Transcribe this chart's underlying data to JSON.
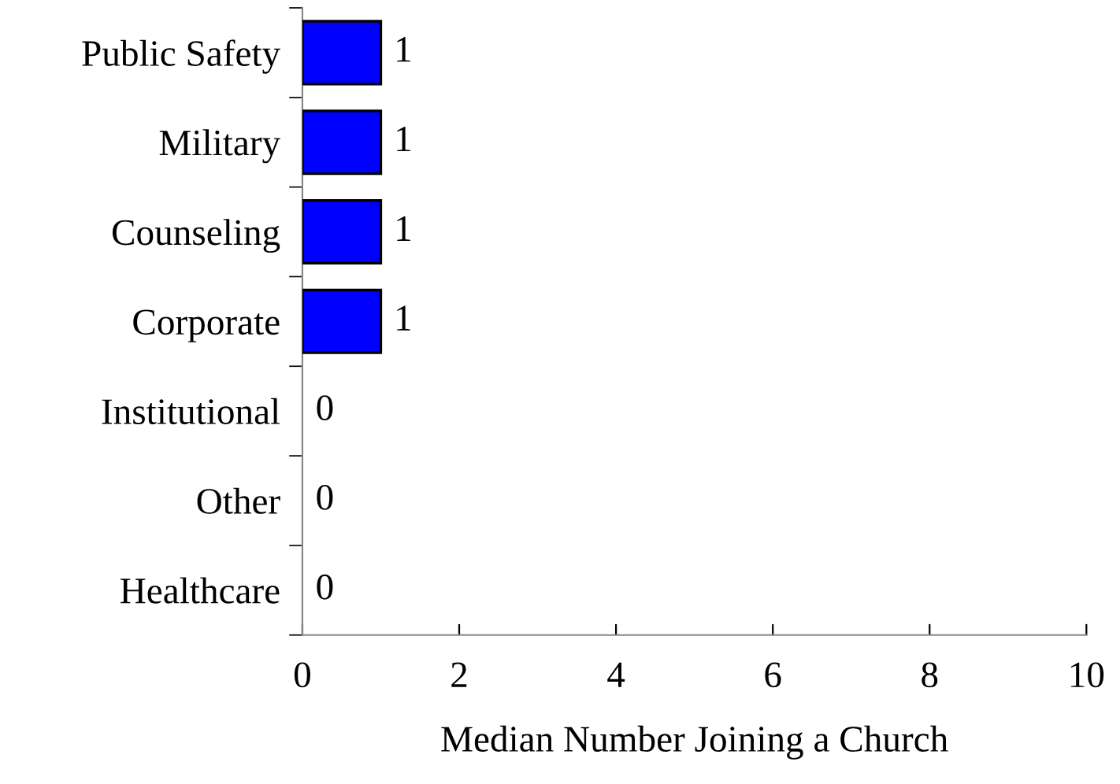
{
  "chart_data": {
    "type": "bar",
    "orientation": "horizontal",
    "categories": [
      "Public Safety",
      "Military",
      "Counseling",
      "Corporate",
      "Institutional",
      "Other",
      "Healthcare"
    ],
    "values": [
      1,
      1,
      1,
      1,
      0,
      0,
      0
    ],
    "color": "#0000ff",
    "xlim": [
      0,
      10
    ],
    "xticks": [
      0,
      2,
      4,
      6,
      8,
      10
    ],
    "xlabel": "Median Number Joining a Church",
    "data_labels": true,
    "grid": false,
    "legend": false
  }
}
